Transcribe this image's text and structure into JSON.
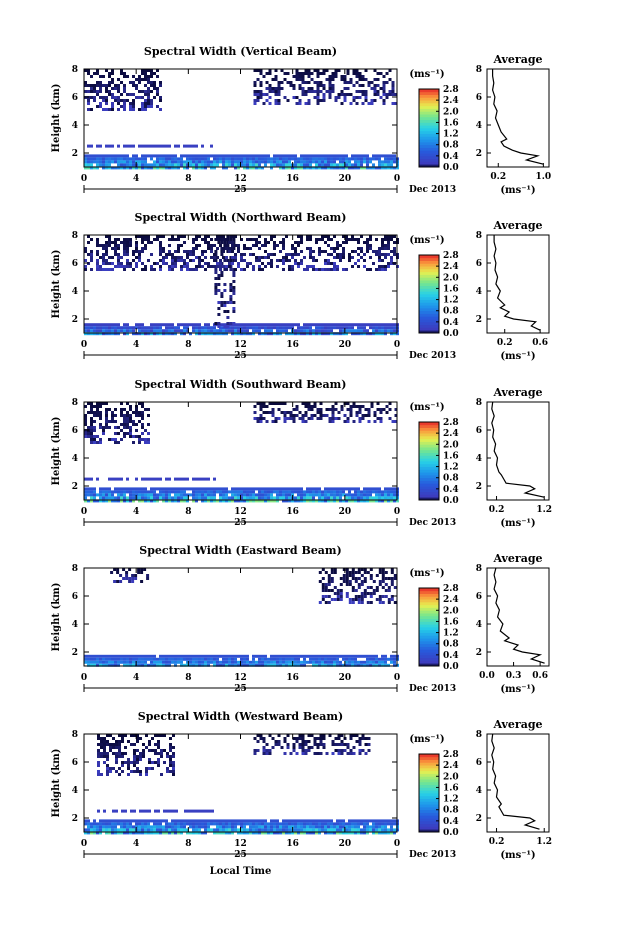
{
  "chart_data": [
    {
      "type": "heatmap",
      "title": "Spectral Width (Vertical Beam)",
      "ylabel": "Height (km)",
      "x_ticks": [
        "0",
        "4",
        "8",
        "12",
        "16",
        "20",
        "0"
      ],
      "x_sub_label": "25",
      "date_label": "Dec 2013",
      "xlim": [
        0,
        24
      ],
      "ylim": [
        1,
        8
      ],
      "y_ticks": [
        "2",
        "4",
        "6",
        "8"
      ],
      "colorbar": {
        "unit": "(ms⁻¹)",
        "ticks": [
          "0.0",
          "0.4",
          "0.8",
          "1.2",
          "1.6",
          "2.0",
          "2.4",
          "2.8"
        ]
      },
      "coverage": [
        {
          "layer": "surface",
          "height_km": [
            1.0,
            1.9
          ],
          "hours": [
            0,
            24
          ],
          "width_ms": [
            0.4,
            2.0
          ]
        },
        {
          "layer": "low",
          "height_km": [
            2.4,
            2.6
          ],
          "hours": [
            0,
            10
          ],
          "width_ms": [
            0.2,
            0.4
          ]
        },
        {
          "layer": "upper",
          "height_km": [
            5.0,
            8.0
          ],
          "hours": [
            0,
            6
          ],
          "width_ms": [
            0.0,
            0.2
          ]
        },
        {
          "layer": "upper",
          "height_km": [
            5.5,
            8.0
          ],
          "hours": [
            13,
            24
          ],
          "width_ms": [
            0.0,
            0.2
          ]
        }
      ],
      "average": {
        "title": "Average",
        "xlabel": "(ms⁻¹)",
        "x_ticks": [
          "0.2",
          "1.0"
        ],
        "y_ticks": [
          "2",
          "4",
          "6",
          "8"
        ],
        "xlim": [
          0.0,
          1.1
        ],
        "ylim": [
          1,
          8
        ],
        "height_km": [
          1.2,
          1.5,
          1.8,
          2.0,
          2.2,
          2.5,
          2.8,
          3.0,
          3.5,
          4.0,
          4.5,
          5.0,
          5.5,
          6.0,
          6.5,
          7.0,
          7.5,
          8.0
        ],
        "width_ms": [
          1.0,
          0.7,
          0.9,
          0.6,
          0.45,
          0.3,
          0.25,
          0.35,
          0.25,
          0.2,
          0.15,
          0.18,
          0.12,
          0.14,
          0.1,
          0.12,
          0.1,
          0.1
        ]
      }
    },
    {
      "type": "heatmap",
      "title": "Spectral Width (Northward Beam)",
      "ylabel": "Height (km)",
      "x_ticks": [
        "0",
        "4",
        "8",
        "12",
        "16",
        "20",
        "0"
      ],
      "x_sub_label": "25",
      "date_label": "Dec 2013",
      "xlim": [
        0,
        24
      ],
      "ylim": [
        1,
        8
      ],
      "y_ticks": [
        "2",
        "4",
        "6",
        "8"
      ],
      "colorbar": {
        "unit": "(ms⁻¹)",
        "ticks": [
          "0.0",
          "0.4",
          "0.8",
          "1.2",
          "1.6",
          "2.0",
          "2.4",
          "2.8"
        ]
      },
      "coverage": [
        {
          "layer": "surface",
          "height_km": [
            1.0,
            1.7
          ],
          "hours": [
            0,
            24
          ],
          "width_ms": [
            0.2,
            1.4
          ]
        },
        {
          "layer": "column",
          "height_km": [
            1.5,
            8.0
          ],
          "hours": [
            10,
            11.5
          ],
          "width_ms": [
            0.0,
            0.2
          ]
        },
        {
          "layer": "upper",
          "height_km": [
            5.5,
            8.0
          ],
          "hours": [
            0,
            24
          ],
          "width_ms": [
            0.0,
            0.2
          ]
        }
      ],
      "average": {
        "title": "Average",
        "xlabel": "(ms⁻¹)",
        "x_ticks": [
          "0.2",
          "0.6"
        ],
        "y_ticks": [
          "2",
          "4",
          "6",
          "8"
        ],
        "xlim": [
          0.0,
          0.7
        ],
        "ylim": [
          1,
          8
        ],
        "height_km": [
          1.2,
          1.5,
          1.8,
          2.0,
          2.2,
          2.5,
          2.8,
          3.0,
          3.5,
          4.0,
          4.5,
          5.0,
          5.5,
          6.0,
          6.5,
          7.0,
          7.5,
          8.0
        ],
        "width_ms": [
          0.6,
          0.5,
          0.55,
          0.3,
          0.2,
          0.25,
          0.15,
          0.2,
          0.12,
          0.15,
          0.1,
          0.12,
          0.09,
          0.1,
          0.08,
          0.1,
          0.08,
          0.08
        ]
      }
    },
    {
      "type": "heatmap",
      "title": "Spectral Width (Southward Beam)",
      "ylabel": "Height (km)",
      "x_ticks": [
        "0",
        "4",
        "8",
        "12",
        "16",
        "20",
        "0"
      ],
      "x_sub_label": "25",
      "date_label": "Dec 2013",
      "xlim": [
        0,
        24
      ],
      "ylim": [
        1,
        8
      ],
      "y_ticks": [
        "2",
        "4",
        "6",
        "8"
      ],
      "colorbar": {
        "unit": "(ms⁻¹)",
        "ticks": [
          "0.0",
          "0.4",
          "0.8",
          "1.2",
          "1.6",
          "2.0",
          "2.4",
          "2.8"
        ]
      },
      "coverage": [
        {
          "layer": "surface",
          "height_km": [
            1.0,
            1.9
          ],
          "hours": [
            0,
            24
          ],
          "width_ms": [
            0.4,
            2.0
          ]
        },
        {
          "layer": "low",
          "height_km": [
            2.4,
            2.6
          ],
          "hours": [
            0,
            10
          ],
          "width_ms": [
            0.2,
            0.4
          ]
        },
        {
          "layer": "upper",
          "height_km": [
            5.0,
            8.0
          ],
          "hours": [
            0,
            5
          ],
          "width_ms": [
            0.0,
            0.2
          ]
        },
        {
          "layer": "upper",
          "height_km": [
            6.5,
            8.0
          ],
          "hours": [
            13,
            24
          ],
          "width_ms": [
            0.0,
            0.2
          ]
        }
      ],
      "average": {
        "title": "Average",
        "xlabel": "(ms⁻¹)",
        "x_ticks": [
          "0.2",
          "1.2"
        ],
        "y_ticks": [
          "2",
          "4",
          "6",
          "8"
        ],
        "xlim": [
          0.0,
          1.3
        ],
        "ylim": [
          1,
          8
        ],
        "height_km": [
          1.2,
          1.5,
          1.8,
          2.0,
          2.2,
          2.5,
          2.8,
          3.0,
          3.5,
          4.0,
          4.5,
          5.0,
          5.5,
          6.0,
          6.5,
          7.0,
          7.5,
          8.0
        ],
        "width_ms": [
          1.2,
          0.8,
          1.0,
          0.9,
          0.4,
          0.35,
          0.3,
          0.25,
          0.2,
          0.22,
          0.15,
          0.18,
          0.12,
          0.14,
          0.1,
          0.15,
          0.1,
          0.12
        ]
      }
    },
    {
      "type": "heatmap",
      "title": "Spectral Width (Eastward Beam)",
      "ylabel": "Height (km)",
      "x_ticks": [
        "0",
        "4",
        "8",
        "12",
        "16",
        "20",
        "0"
      ],
      "x_sub_label": "25",
      "date_label": "Dec 2013",
      "xlim": [
        0,
        24
      ],
      "ylim": [
        1,
        8
      ],
      "y_ticks": [
        "2",
        "4",
        "6",
        "8"
      ],
      "colorbar": {
        "unit": "(ms⁻¹)",
        "ticks": [
          "0.0",
          "0.4",
          "0.8",
          "1.2",
          "1.6",
          "2.0",
          "2.4",
          "2.8"
        ]
      },
      "coverage": [
        {
          "layer": "surface",
          "height_km": [
            1.0,
            1.8
          ],
          "hours": [
            0,
            24
          ],
          "width_ms": [
            0.4,
            1.6
          ]
        },
        {
          "layer": "upper",
          "height_km": [
            5.5,
            8.0
          ],
          "hours": [
            18,
            24
          ],
          "width_ms": [
            0.0,
            0.2
          ]
        },
        {
          "layer": "upper",
          "height_km": [
            7.0,
            8.0
          ],
          "hours": [
            2,
            5
          ],
          "width_ms": [
            0.0,
            0.2
          ]
        }
      ],
      "average": {
        "title": "Average",
        "xlabel": "(ms⁻¹)",
        "x_ticks": [
          "0.0",
          "0.3",
          "0.6"
        ],
        "y_ticks": [
          "2",
          "4",
          "6",
          "8"
        ],
        "xlim": [
          0.0,
          0.7
        ],
        "ylim": [
          1,
          8
        ],
        "height_km": [
          1.2,
          1.5,
          1.8,
          2.0,
          2.2,
          2.5,
          2.8,
          3.0,
          3.5,
          4.0,
          4.5,
          5.0,
          5.5,
          6.0,
          6.5,
          7.0,
          7.5,
          8.0
        ],
        "width_ms": [
          0.65,
          0.5,
          0.6,
          0.4,
          0.3,
          0.35,
          0.2,
          0.25,
          0.15,
          0.18,
          0.12,
          0.14,
          0.1,
          0.12,
          0.08,
          0.1,
          0.08,
          0.1
        ]
      }
    },
    {
      "type": "heatmap",
      "title": "Spectral Width (Westward Beam)",
      "ylabel": "Height (km)",
      "xlabel": "Local Time",
      "x_ticks": [
        "0",
        "4",
        "8",
        "12",
        "16",
        "20",
        "0"
      ],
      "x_sub_label": "25",
      "date_label": "Dec 2013",
      "xlim": [
        0,
        24
      ],
      "ylim": [
        1,
        8
      ],
      "y_ticks": [
        "2",
        "4",
        "6",
        "8"
      ],
      "colorbar": {
        "unit": "(ms⁻¹)",
        "ticks": [
          "0.0",
          "0.4",
          "0.8",
          "1.2",
          "1.6",
          "2.0",
          "2.4",
          "2.8"
        ]
      },
      "coverage": [
        {
          "layer": "surface",
          "height_km": [
            1.0,
            1.9
          ],
          "hours": [
            0,
            24
          ],
          "width_ms": [
            0.4,
            2.0
          ]
        },
        {
          "layer": "low",
          "height_km": [
            2.4,
            2.6
          ],
          "hours": [
            1,
            10
          ],
          "width_ms": [
            0.2,
            0.4
          ]
        },
        {
          "layer": "upper",
          "height_km": [
            5.0,
            8.0
          ],
          "hours": [
            1,
            7
          ],
          "width_ms": [
            0.0,
            0.2
          ]
        },
        {
          "layer": "upper",
          "height_km": [
            6.5,
            8.0
          ],
          "hours": [
            13,
            22
          ],
          "width_ms": [
            0.0,
            0.2
          ]
        }
      ],
      "average": {
        "title": "Average",
        "xlabel": "(ms⁻¹)",
        "x_ticks": [
          "0.2",
          "1.2"
        ],
        "y_ticks": [
          "2",
          "4",
          "6",
          "8"
        ],
        "xlim": [
          0.0,
          1.3
        ],
        "ylim": [
          1,
          8
        ],
        "height_km": [
          1.2,
          1.5,
          1.8,
          2.0,
          2.2,
          2.5,
          2.8,
          3.0,
          3.5,
          4.0,
          4.5,
          5.0,
          5.5,
          6.0,
          6.5,
          7.0,
          7.5,
          8.0
        ],
        "width_ms": [
          1.1,
          0.8,
          1.0,
          0.9,
          0.35,
          0.3,
          0.25,
          0.3,
          0.2,
          0.22,
          0.15,
          0.18,
          0.12,
          0.14,
          0.1,
          0.15,
          0.1,
          0.12
        ]
      }
    }
  ]
}
